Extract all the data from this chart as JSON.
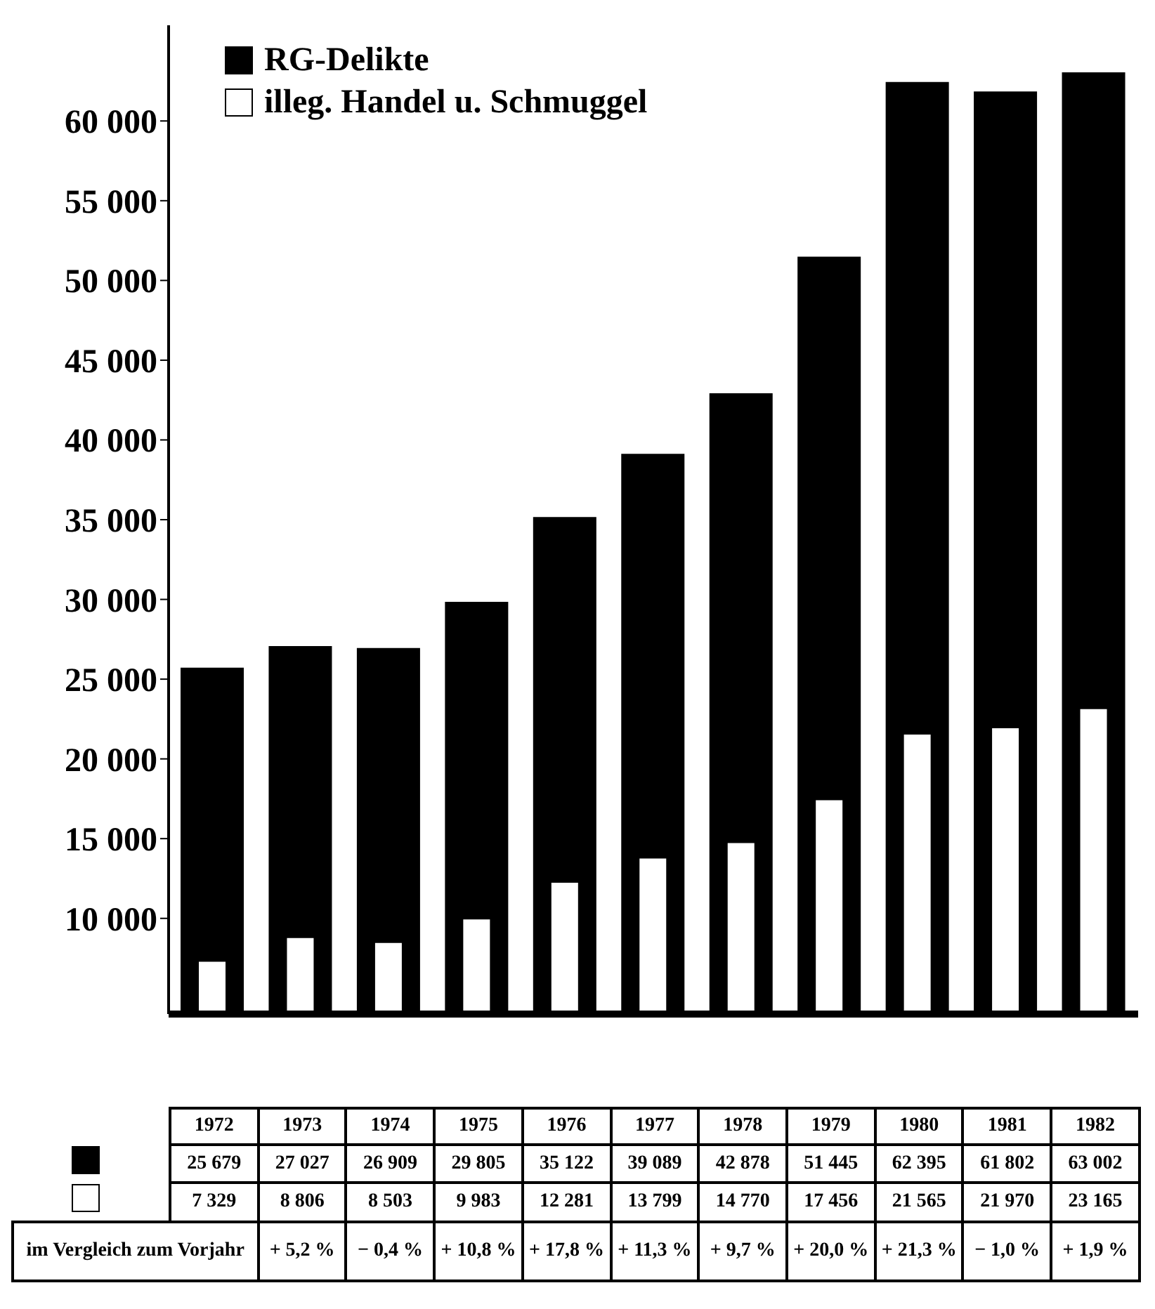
{
  "chart_data": {
    "type": "bar",
    "categories": [
      "1972",
      "1973",
      "1974",
      "1975",
      "1976",
      "1977",
      "1978",
      "1979",
      "1980",
      "1981",
      "1982"
    ],
    "series": [
      {
        "name": "RG-Delikte",
        "color": "#000000",
        "values": [
          25679,
          27027,
          26909,
          29805,
          35122,
          39089,
          42878,
          51445,
          62395,
          61802,
          63002
        ],
        "value_labels": [
          "25 679",
          "27 027",
          "26 909",
          "29 805",
          "35 122",
          "39 089",
          "42 878",
          "51 445",
          "62 395",
          "61 802",
          "63 002"
        ]
      },
      {
        "name": "illeg. Handel u. Schmuggel",
        "color": "#ffffff",
        "values": [
          7329,
          8806,
          8503,
          9983,
          12281,
          13799,
          14770,
          17456,
          21565,
          21970,
          23165
        ],
        "value_labels": [
          "7 329",
          "8 806",
          "8 503",
          "9 983",
          "12 281",
          "13 799",
          "14 770",
          "17 456",
          "21 565",
          "21 970",
          "23 165"
        ]
      }
    ],
    "ylim": [
      4000,
      66000
    ],
    "yticks": [
      {
        "value": 10000,
        "label": "10 000"
      },
      {
        "value": 15000,
        "label": "15 000"
      },
      {
        "value": 20000,
        "label": "20 000"
      },
      {
        "value": 25000,
        "label": "25 000"
      },
      {
        "value": 30000,
        "label": "30 000"
      },
      {
        "value": 35000,
        "label": "35 000"
      },
      {
        "value": 40000,
        "label": "40 000"
      },
      {
        "value": 45000,
        "label": "45 000"
      },
      {
        "value": 50000,
        "label": "50 000"
      },
      {
        "value": 55000,
        "label": "55 000"
      },
      {
        "value": 60000,
        "label": "60 000"
      }
    ],
    "legend": "top left",
    "grid": false,
    "annotations": [
      "im Vergleich zum Vorjahr",
      "+ 5,2 %",
      "− 0,4 %",
      "+ 10,8 %",
      "+ 17,8 %",
      "+ 11,3 %",
      "+ 9,7 %",
      "+ 20,0 %",
      "+ 21,3 %",
      "− 1,0 %",
      "+ 1,9 %"
    ]
  }
}
